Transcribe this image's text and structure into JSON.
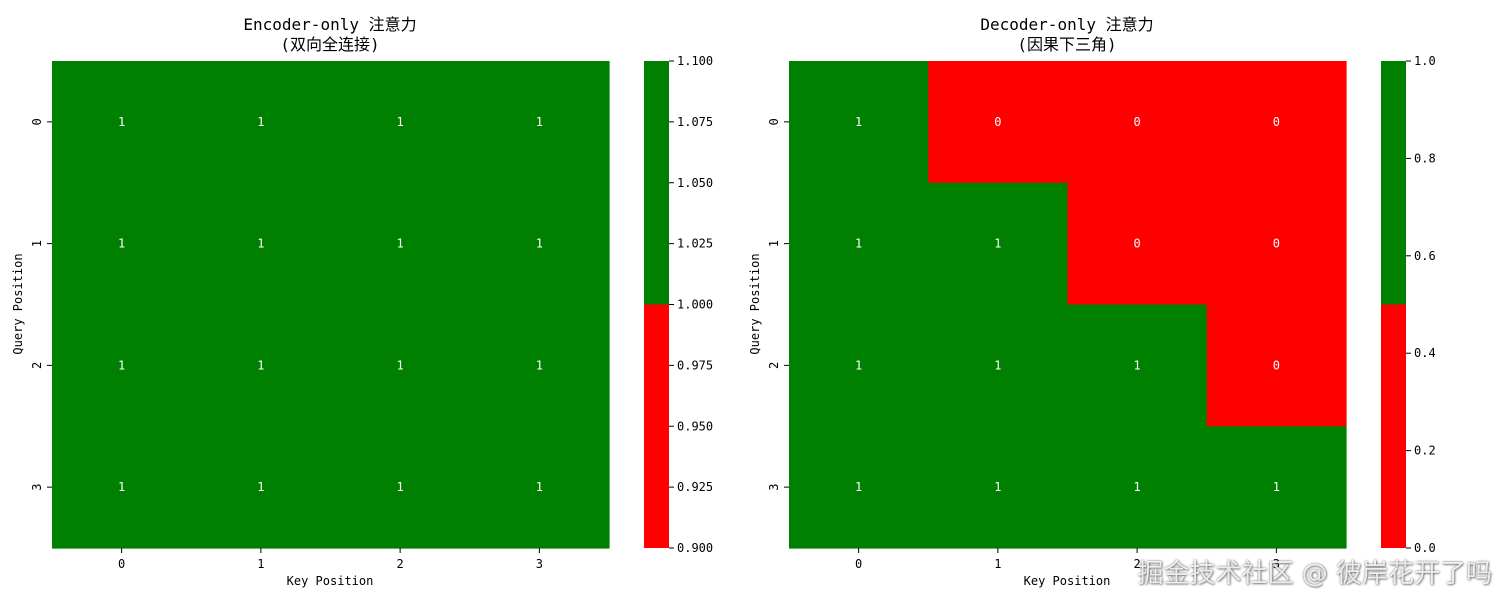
{
  "colors": {
    "zero": "#ff0000",
    "one": "#008000"
  },
  "watermark": "掘金技术社区 @ 彼岸花开了吗",
  "chart_data": [
    {
      "type": "heatmap",
      "title_line1": "Encoder-only 注意力",
      "title_line2": "(双向全连接)",
      "xlabel": "Key Position",
      "ylabel": "Query Position",
      "x_ticks": [
        "0",
        "1",
        "2",
        "3"
      ],
      "y_ticks": [
        "0",
        "1",
        "2",
        "3"
      ],
      "values": [
        [
          1,
          1,
          1,
          1
        ],
        [
          1,
          1,
          1,
          1
        ],
        [
          1,
          1,
          1,
          1
        ],
        [
          1,
          1,
          1,
          1
        ]
      ],
      "colorbar": {
        "vmin": 0.9,
        "vmax": 1.1,
        "split": 1.0,
        "ticks": [
          "0.900",
          "0.925",
          "0.950",
          "0.975",
          "1.000",
          "1.025",
          "1.050",
          "1.075",
          "1.100"
        ]
      }
    },
    {
      "type": "heatmap",
      "title_line1": "Decoder-only 注意力",
      "title_line2": "(因果下三角)",
      "xlabel": "Key Position",
      "ylabel": "Query Position",
      "x_ticks": [
        "0",
        "1",
        "2",
        "3"
      ],
      "y_ticks": [
        "0",
        "1",
        "2",
        "3"
      ],
      "values": [
        [
          1,
          0,
          0,
          0
        ],
        [
          1,
          1,
          0,
          0
        ],
        [
          1,
          1,
          1,
          0
        ],
        [
          1,
          1,
          1,
          1
        ]
      ],
      "colorbar": {
        "vmin": 0.0,
        "vmax": 1.0,
        "split": 0.5,
        "ticks": [
          "0.0",
          "0.2",
          "0.4",
          "0.6",
          "0.8",
          "1.0"
        ]
      }
    }
  ]
}
